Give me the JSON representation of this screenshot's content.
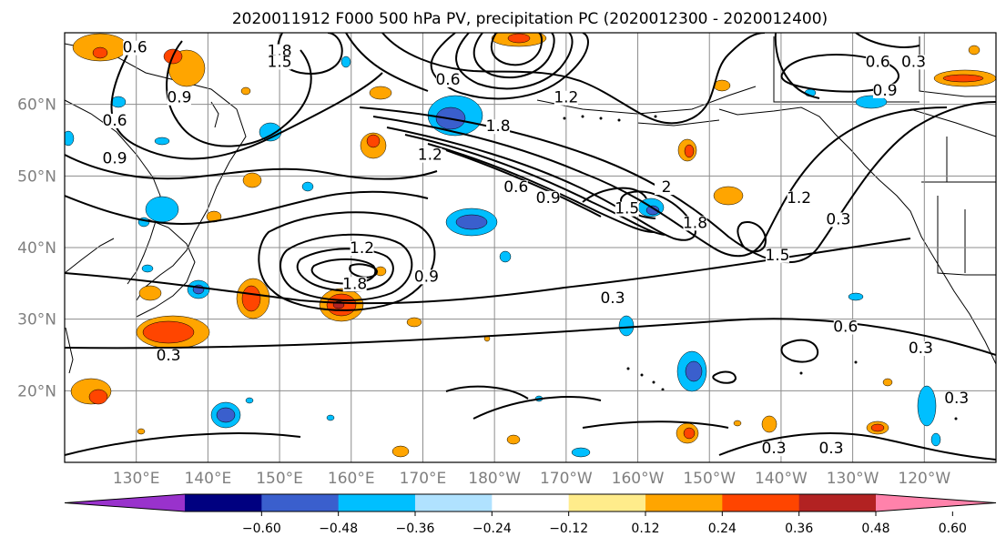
{
  "title": "2020011912 F000 500 hPa PV, precipitation PC (2020012300 - 2020012400)",
  "map": {
    "lat_labels": [
      {
        "label": "60°N",
        "lat": 60
      },
      {
        "label": "50°N",
        "lat": 50
      },
      {
        "label": "40°N",
        "lat": 40
      },
      {
        "label": "30°N",
        "lat": 30
      },
      {
        "label": "20°N",
        "lat": 20
      }
    ],
    "lon_labels": [
      {
        "label": "130°E",
        "lon": 130
      },
      {
        "label": "140°E",
        "lon": 140
      },
      {
        "label": "150°E",
        "lon": 150
      },
      {
        "label": "160°E",
        "lon": 160
      },
      {
        "label": "170°E",
        "lon": 170
      },
      {
        "label": "180°W",
        "lon": 180
      },
      {
        "label": "170°W",
        "lon": 190
      },
      {
        "label": "160°W",
        "lon": 200
      },
      {
        "label": "150°W",
        "lon": 210
      },
      {
        "label": "140°W",
        "lon": 220
      },
      {
        "label": "130°W",
        "lon": 230
      },
      {
        "label": "120°W",
        "lon": 240
      }
    ],
    "grid_lats": [
      20,
      30,
      40,
      50,
      60
    ],
    "grid_lons": [
      130,
      140,
      150,
      160,
      170,
      180,
      190,
      200,
      210,
      220,
      230,
      240
    ],
    "contour_labels": [
      {
        "text": "1.8",
        "lon": 150,
        "lat": 67
      },
      {
        "text": "1.5",
        "lon": 150,
        "lat": 65.5
      },
      {
        "text": "0.6",
        "lon": 173.5,
        "lat": 63
      },
      {
        "text": "0.6",
        "lon": 129.8,
        "lat": 67.5
      },
      {
        "text": "0.9",
        "lon": 136,
        "lat": 60.5
      },
      {
        "text": "0.6",
        "lon": 127,
        "lat": 57.3
      },
      {
        "text": "0.9",
        "lon": 127,
        "lat": 52
      },
      {
        "text": "1.2",
        "lon": 190,
        "lat": 60.5
      },
      {
        "text": "1.8",
        "lon": 180.5,
        "lat": 56.5
      },
      {
        "text": "1.2",
        "lon": 171,
        "lat": 52.5
      },
      {
        "text": "0.6",
        "lon": 183,
        "lat": 48
      },
      {
        "text": "0.9",
        "lon": 187.5,
        "lat": 46.5
      },
      {
        "text": "1.5",
        "lon": 198.5,
        "lat": 45
      },
      {
        "text": "2",
        "lon": 204,
        "lat": 48
      },
      {
        "text": "1.8",
        "lon": 208,
        "lat": 43
      },
      {
        "text": "1.2",
        "lon": 222.5,
        "lat": 46.5
      },
      {
        "text": "0.3",
        "lon": 228,
        "lat": 43.5
      },
      {
        "text": "1.5",
        "lon": 219.5,
        "lat": 38.5
      },
      {
        "text": "0.6",
        "lon": 233.5,
        "lat": 65.5
      },
      {
        "text": "0.3",
        "lon": 238.5,
        "lat": 65.5
      },
      {
        "text": "0.9",
        "lon": 234.5,
        "lat": 61.5
      },
      {
        "text": "1.2",
        "lon": 161.5,
        "lat": 39.5
      },
      {
        "text": "1.8",
        "lon": 160.5,
        "lat": 34.5
      },
      {
        "text": "0.9",
        "lon": 170.5,
        "lat": 35.5
      },
      {
        "text": "0.3",
        "lon": 196.5,
        "lat": 32.5
      },
      {
        "text": "0.3",
        "lon": 134.5,
        "lat": 24.5
      },
      {
        "text": "0.6",
        "lon": 229,
        "lat": 28.5
      },
      {
        "text": "0.3",
        "lon": 239.5,
        "lat": 25.5
      },
      {
        "text": "0.3",
        "lon": 244.5,
        "lat": 18.5
      },
      {
        "text": "0.3",
        "lon": 219,
        "lat": 11.5
      },
      {
        "text": "0.3",
        "lon": 227,
        "lat": 11.5
      }
    ]
  },
  "colorbar": {
    "colors": [
      "#9932cc",
      "#000080",
      "#3a5fcd",
      "#00bfff",
      "#b0e2ff",
      "#ffffff",
      "#ffec8b",
      "#ffa500",
      "#ff4500",
      "#b22222",
      "#ff82ab"
    ],
    "ticks": [
      "−0.60",
      "−0.48",
      "−0.36",
      "−0.24",
      "−0.12",
      "0.12",
      "0.24",
      "0.36",
      "0.48",
      "0.60"
    ]
  }
}
